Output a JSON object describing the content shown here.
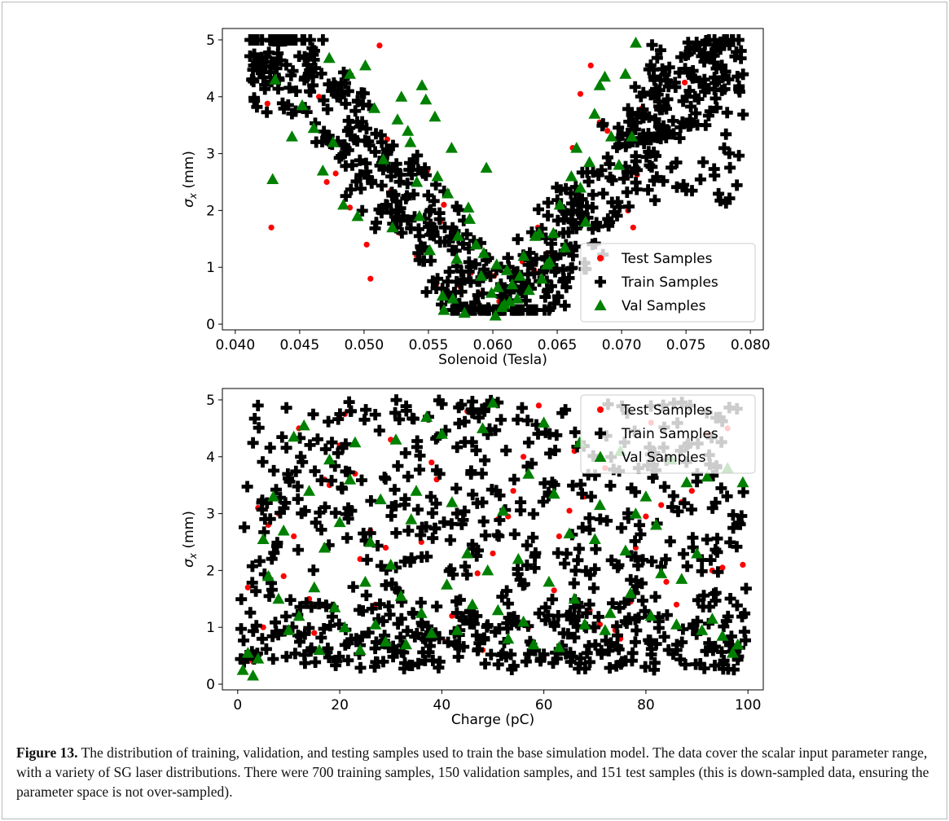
{
  "caption": {
    "label": "Figure 13.",
    "text": "The distribution of training, validation, and testing samples used to train the base simulation model. The data cover the scalar input parameter range, with a variety of SG laser distributions. There were 700 training samples, 150 validation samples, and 151 test samples (this is down-sampled data, ensuring the parameter space is not over-sampled)."
  },
  "colors": {
    "test": "#ff0000",
    "train": "#000000",
    "val": "#008000"
  },
  "chart_data": [
    {
      "type": "scatter",
      "xlabel": "Solenoid (Tesla)",
      "ylabel": "σx (mm)",
      "xlim": [
        0.039,
        0.081
      ],
      "ylim": [
        -0.1,
        5.2
      ],
      "xticks": [
        "0.040",
        "0.045",
        "0.050",
        "0.055",
        "0.060",
        "0.065",
        "0.070",
        "0.075",
        "0.080"
      ],
      "yticks": [
        "0",
        "1",
        "2",
        "3",
        "4",
        "5"
      ],
      "legend_position": "lower-right",
      "legend": [
        "Test Samples",
        "Train Samples",
        "Val Samples"
      ],
      "series": [
        {
          "name": "Test Samples",
          "marker": "circle",
          "x": [
            0.0428,
            0.0425,
            0.0432,
            0.0465,
            0.0478,
            0.0471,
            0.0505,
            0.0502,
            0.0512,
            0.0521,
            0.0528,
            0.0541,
            0.0556,
            0.0562,
            0.0571,
            0.0583,
            0.0592,
            0.0601,
            0.0612,
            0.0623,
            0.0635,
            0.0642,
            0.0651,
            0.0662,
            0.0668,
            0.0676,
            0.0689,
            0.0698,
            0.0705,
            0.0712,
            0.0709,
            0.0716,
            0.0749,
            0.0784,
            0.0781,
            0.0489,
            0.0455,
            0.0518,
            0.0549,
            0.0559,
            0.0575,
            0.0605,
            0.0632,
            0.0683
          ],
          "y": [
            1.7,
            3.88,
            4.66,
            4.0,
            2.65,
            2.5,
            0.8,
            1.4,
            4.9,
            2.35,
            1.6,
            1.2,
            0.7,
            2.1,
            1.3,
            0.9,
            0.55,
            0.85,
            0.6,
            1.1,
            1.7,
            1.25,
            2.4,
            3.1,
            4.05,
            4.55,
            3.4,
            2.8,
            2.0,
            2.63,
            1.7,
            3.8,
            4.25,
            4.95,
            4.93,
            2.05,
            4.6,
            3.25,
            2.7,
            1.8,
            0.65,
            0.4,
            0.95,
            3.55
          ]
        },
        {
          "name": "Train Samples",
          "marker": "plus",
          "count": 700
        },
        {
          "name": "Val Samples",
          "marker": "triangle",
          "x": [
            0.0429,
            0.0431,
            0.0444,
            0.0452,
            0.0461,
            0.0468,
            0.0473,
            0.0476,
            0.0484,
            0.0489,
            0.0495,
            0.0501,
            0.0508,
            0.0515,
            0.0522,
            0.0529,
            0.0534,
            0.0541,
            0.0545,
            0.0551,
            0.0555,
            0.0561,
            0.0565,
            0.0568,
            0.0572,
            0.0578,
            0.0582,
            0.0587,
            0.0591,
            0.0595,
            0.0599,
            0.0603,
            0.0607,
            0.0611,
            0.0615,
            0.0619,
            0.0624,
            0.0628,
            0.0633,
            0.0638,
            0.0642,
            0.0647,
            0.0652,
            0.0656,
            0.0661,
            0.0665,
            0.0668,
            0.0672,
            0.0675,
            0.0679,
            0.0683,
            0.0687,
            0.0692,
            0.0698,
            0.0703,
            0.0708,
            0.0711,
            0.0548,
            0.0557,
            0.0573,
            0.0581,
            0.0593,
            0.0604,
            0.0613,
            0.0621,
            0.0636,
            0.0644,
            0.0536,
            0.0543,
            0.0526,
            0.0562,
            0.0569,
            0.0602,
            0.0609
          ],
          "y": [
            2.55,
            4.3,
            3.3,
            3.85,
            3.45,
            2.7,
            4.68,
            3.2,
            2.1,
            4.4,
            1.9,
            4.55,
            3.8,
            2.9,
            1.7,
            4.0,
            3.4,
            2.5,
            4.2,
            1.3,
            3.65,
            0.5,
            2.3,
            3.1,
            1.15,
            0.2,
            1.85,
            1.4,
            0.85,
            2.75,
            0.55,
            1.05,
            0.3,
            0.95,
            0.7,
            0.45,
            1.2,
            0.6,
            1.55,
            0.8,
            1.05,
            1.6,
            2.1,
            1.35,
            2.6,
            3.1,
            2.4,
            1.8,
            2.85,
            3.7,
            4.2,
            4.35,
            3.3,
            2.8,
            4.4,
            3.3,
            4.95,
            3.95,
            2.6,
            1.55,
            2.05,
            1.25,
            0.65,
            0.4,
            0.85,
            1.6,
            1.1,
            3.2,
            1.9,
            3.6,
            0.25,
            0.45,
            0.15,
            0.35
          ]
        }
      ]
    },
    {
      "type": "scatter",
      "xlabel": "Charge (pC)",
      "ylabel": "σx (mm)",
      "xlim": [
        -3,
        103
      ],
      "ylim": [
        -0.1,
        5.2
      ],
      "xticks": [
        "0",
        "20",
        "40",
        "60",
        "80",
        "100"
      ],
      "yticks": [
        "0",
        "1",
        "2",
        "3",
        "4",
        "5"
      ],
      "legend_position": "upper-right",
      "legend": [
        "Test Samples",
        "Train Samples",
        "Val Samples"
      ],
      "series": [
        {
          "name": "Test Samples",
          "marker": "circle",
          "x": [
            2,
            4,
            6,
            9,
            12,
            15,
            18,
            21,
            24,
            27,
            30,
            33,
            36,
            39,
            42,
            45,
            48,
            51,
            54,
            57,
            60,
            63,
            66,
            69,
            72,
            75,
            78,
            81,
            84,
            87,
            90,
            93,
            96,
            99,
            3,
            8,
            14,
            20,
            26,
            32,
            38,
            44,
            50,
            56,
            62,
            68,
            74,
            80,
            86,
            92,
            97,
            11,
            23,
            35,
            47,
            59,
            71,
            83,
            95,
            5,
            17,
            29,
            41,
            53,
            65,
            77,
            89
          ],
          "y": [
            1.7,
            3.1,
            2.8,
            1.9,
            4.5,
            0.9,
            3.5,
            4.75,
            2.2,
            1.4,
            4.3,
            0.7,
            2.5,
            3.6,
            1.2,
            4.8,
            0.6,
            2.9,
            3.4,
            1.0,
            0.5,
            2.6,
            4.1,
            1.3,
            3.8,
            0.8,
            2.4,
            4.6,
            1.8,
            3.2,
            0.9,
            2.0,
            4.5,
            2.1,
            0.4,
            3.0,
            1.5,
            4.2,
            2.7,
            1.1,
            3.9,
            0.65,
            2.3,
            4.0,
            1.65,
            3.3,
            0.95,
            2.95,
            1.4,
            4.4,
            0.6,
            2.6,
            3.7,
            0.85,
            1.95,
            4.9,
            1.05,
            3.15,
            2.05,
            1.0,
            3.6,
            2.4,
            0.75,
            2.95,
            3.05,
            1.45,
            3.4
          ]
        },
        {
          "name": "Train Samples",
          "marker": "plus",
          "count": 700
        },
        {
          "name": "Val Samples",
          "marker": "triangle",
          "x": [
            1,
            2,
            3,
            4,
            5,
            6,
            7,
            8,
            9,
            10,
            11,
            12,
            13,
            14,
            15,
            16,
            17,
            18,
            19,
            20,
            21,
            22,
            23,
            24,
            25,
            26,
            27,
            28,
            29,
            30,
            31,
            32,
            33,
            34,
            35,
            36,
            37,
            38,
            40,
            41,
            42,
            43,
            45,
            46,
            48,
            49,
            50,
            51,
            52,
            53,
            55,
            56,
            57,
            58,
            60,
            61,
            62,
            63,
            65,
            66,
            67,
            68,
            70,
            71,
            72,
            73,
            75,
            76,
            77,
            78,
            80,
            81,
            82,
            83,
            85,
            86,
            87,
            88,
            90,
            91,
            92,
            93,
            95,
            96,
            97,
            98,
            99
          ],
          "y": [
            0.25,
            0.55,
            0.15,
            0.45,
            2.55,
            1.9,
            3.3,
            1.5,
            2.7,
            0.95,
            4.35,
            1.2,
            4.55,
            3.4,
            1.7,
            0.6,
            2.4,
            3.95,
            1.35,
            2.85,
            1.0,
            3.6,
            4.25,
            0.6,
            1.8,
            2.5,
            1.05,
            3.25,
            0.75,
            2.1,
            4.3,
            1.55,
            0.7,
            2.9,
            3.4,
            1.25,
            4.7,
            0.9,
            4.4,
            1.75,
            3.2,
            0.95,
            2.3,
            1.4,
            4.5,
            2.0,
            4.95,
            1.3,
            3.05,
            0.8,
            2.2,
            1.1,
            3.7,
            0.7,
            4.6,
            1.8,
            3.35,
            0.65,
            2.65,
            1.5,
            4.25,
            1.05,
            2.55,
            3.15,
            0.95,
            1.25,
            4.1,
            2.35,
            1.6,
            3.0,
            3.3,
            1.2,
            2.8,
            1.95,
            3.95,
            1.05,
            1.85,
            3.55,
            2.3,
            0.95,
            3.65,
            1.15,
            0.85,
            3.8,
            0.55,
            0.7,
            3.55
          ]
        }
      ]
    }
  ]
}
